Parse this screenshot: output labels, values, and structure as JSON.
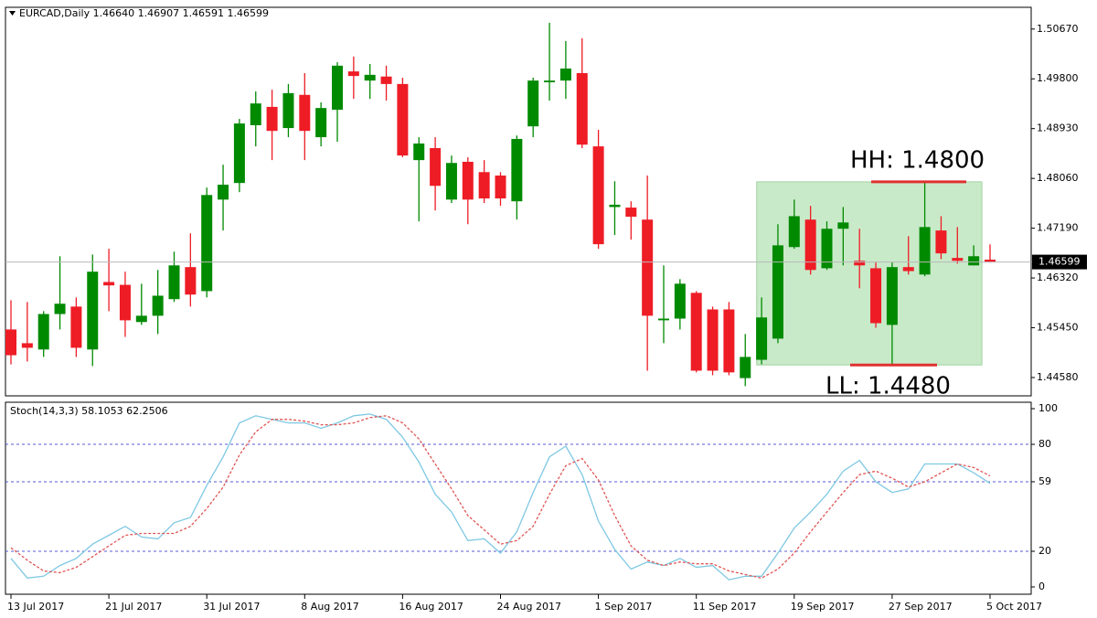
{
  "chart_data": [
    {
      "type": "candlestick",
      "title": "EURCAD,Daily  1.46640 1.46907 1.46591 1.46599",
      "categories": [
        "13 Jul 2017",
        null,
        null,
        null,
        null,
        null,
        "21 Jul 2017",
        null,
        null,
        null,
        null,
        null,
        "31 Jul 2017",
        null,
        null,
        null,
        null,
        null,
        "8 Aug 2017",
        null,
        null,
        null,
        null,
        null,
        "16 Aug 2017",
        null,
        null,
        null,
        null,
        null,
        "24 Aug 2017",
        null,
        null,
        null,
        null,
        null,
        "1 Sep 2017",
        null,
        null,
        null,
        null,
        null,
        "11 Sep 2017",
        null,
        null,
        null,
        null,
        null,
        "19 Sep 2017",
        null,
        null,
        null,
        null,
        null,
        "27 Sep 2017",
        null,
        null,
        null,
        null,
        null,
        "5 Oct 2017"
      ],
      "open": [
        1.4542,
        1.4518,
        1.4507,
        1.4569,
        1.4582,
        1.4507,
        1.4625,
        1.462,
        1.4555,
        1.4566,
        1.4595,
        1.4651,
        1.4609,
        1.4769,
        1.4798,
        1.4899,
        1.4931,
        1.4894,
        1.4952,
        1.4878,
        1.4926,
        1.4993,
        1.4977,
        1.4984,
        1.4971,
        1.4838,
        1.4859,
        1.4769,
        1.4835,
        1.4817,
        1.4811,
        1.4766,
        1.4897,
        1.4974,
        1.4977,
        1.499,
        1.4862,
        1.4756,
        1.4755,
        1.4734,
        1.4558,
        1.4561,
        1.4606,
        1.4577,
        1.4577,
        1.4457,
        1.4489,
        1.4526,
        1.4686,
        1.4734,
        1.4649,
        1.4718,
        1.4662,
        1.4649,
        1.455,
        1.4651,
        1.4638,
        1.4715,
        1.4667,
        1.4654,
        1.4664
      ],
      "high": [
        1.4593,
        1.459,
        1.4574,
        1.467,
        1.4598,
        1.4673,
        1.4683,
        1.4643,
        1.4622,
        1.4646,
        1.4678,
        1.471,
        1.479,
        1.483,
        1.491,
        1.4958,
        1.4961,
        1.4971,
        1.499,
        1.4939,
        1.5009,
        1.5019,
        1.5006,
        1.5003,
        1.4982,
        1.4878,
        1.4878,
        1.4846,
        1.4843,
        1.4838,
        1.4817,
        1.4881,
        1.4982,
        1.5078,
        1.5046,
        1.5051,
        1.4891,
        1.4801,
        1.4766,
        1.4811,
        1.4654,
        1.463,
        1.4609,
        1.4582,
        1.459,
        1.4534,
        1.4598,
        1.4726,
        1.4769,
        1.4758,
        1.4731,
        1.4756,
        1.4718,
        1.4659,
        1.4659,
        1.4705,
        1.48,
        1.474,
        1.4721,
        1.4689,
        1.46907
      ],
      "low": [
        1.4481,
        1.4486,
        1.4494,
        1.4542,
        1.4494,
        1.4478,
        1.4574,
        1.4529,
        1.455,
        1.4534,
        1.459,
        1.4582,
        1.4598,
        1.4715,
        1.4782,
        1.4862,
        1.4838,
        1.4878,
        1.4838,
        1.4862,
        1.487,
        1.4945,
        1.4945,
        1.4942,
        1.4843,
        1.4731,
        1.475,
        1.4763,
        1.4726,
        1.4763,
        1.4758,
        1.4734,
        1.4878,
        1.4942,
        1.4945,
        1.4859,
        1.4683,
        1.4707,
        1.4699,
        1.447,
        1.4518,
        1.4542,
        1.4467,
        1.4462,
        1.4462,
        1.4443,
        1.4481,
        1.4518,
        1.4683,
        1.4638,
        1.4646,
        1.4654,
        1.4614,
        1.4545,
        1.448,
        1.4638,
        1.4635,
        1.4665,
        1.4657,
        1.4654,
        1.46591
      ],
      "close": [
        1.4497,
        1.451,
        1.4569,
        1.4587,
        1.451,
        1.4643,
        1.4619,
        1.4558,
        1.4566,
        1.4601,
        1.4654,
        1.4603,
        1.4777,
        1.4795,
        1.4902,
        1.4937,
        1.4889,
        1.4955,
        1.4889,
        1.4929,
        1.5003,
        1.4985,
        1.4987,
        1.4971,
        1.4846,
        1.4867,
        1.4793,
        1.4833,
        1.4769,
        1.4771,
        1.4771,
        1.4875,
        1.4977,
        1.4977,
        1.4998,
        1.4865,
        1.4691,
        1.476,
        1.4739,
        1.4566,
        1.4561,
        1.4622,
        1.447,
        1.447,
        1.4467,
        1.4494,
        1.4563,
        1.4689,
        1.474,
        1.4646,
        1.4718,
        1.4729,
        1.4654,
        1.4553,
        1.4651,
        1.4644,
        1.4721,
        1.4675,
        1.4662,
        1.467,
        1.46599
      ],
      "up_color": "#008a00",
      "down_color": "#ee1c25",
      "ylim": [
        1.4426,
        1.5105
      ],
      "yticks": [
        {
          "value": 1.5067,
          "label": "1.50670"
        },
        {
          "value": 1.498,
          "label": "1.49800"
        },
        {
          "value": 1.4893,
          "label": "1.48930"
        },
        {
          "value": 1.4806,
          "label": "1.48060"
        },
        {
          "value": 1.4719,
          "label": "1.47190"
        },
        {
          "value": 1.4632,
          "label": "1.46320"
        },
        {
          "value": 1.4545,
          "label": "1.45450"
        },
        {
          "value": 1.4458,
          "label": "1.44580"
        }
      ],
      "annotations": [
        {
          "text": "HH: 1.4800",
          "value": 1.48
        },
        {
          "text": "LL: 1.4480",
          "value": 1.448
        }
      ],
      "zone_color": "#b7e3b7"
    },
    {
      "type": "line",
      "title": "Stoch(14,3,3) 58.1053 62.2506",
      "series": [
        {
          "color": "#7ec8e3",
          "values": [
            16,
            5,
            6,
            12,
            16,
            24,
            29,
            34,
            28,
            27,
            36,
            39,
            57,
            73,
            92,
            96,
            94,
            92,
            92,
            89,
            92,
            96,
            97,
            94,
            84,
            70,
            52,
            42,
            26,
            27,
            19,
            31,
            53,
            73,
            79,
            63,
            37,
            21,
            10,
            14,
            12,
            16,
            11,
            12,
            4,
            6,
            6,
            19,
            33,
            42,
            52,
            65,
            71,
            59,
            53,
            55,
            69,
            69,
            69,
            64,
            58.1053
          ]
        },
        {
          "color": "#e05555",
          "dashed": true,
          "values": [
            22,
            15,
            9,
            8,
            11,
            17,
            23,
            29,
            30,
            30,
            30,
            34,
            44,
            56,
            74,
            87,
            94,
            94,
            93,
            91,
            91,
            92,
            95,
            96,
            92,
            83,
            69,
            55,
            40,
            32,
            24,
            26,
            34,
            52,
            68,
            72,
            60,
            40,
            23,
            15,
            12,
            14,
            13,
            13,
            9,
            7,
            5,
            10,
            19,
            31,
            42,
            53,
            63,
            65,
            61,
            56,
            59,
            64,
            69,
            67,
            62.2506
          ]
        }
      ],
      "ylim": [
        -4.1,
        103.6
      ],
      "yticks": [
        0,
        20,
        59,
        80,
        100
      ],
      "levels": [
        80,
        59,
        20
      ],
      "level_color": "#5a5ad6"
    }
  ]
}
